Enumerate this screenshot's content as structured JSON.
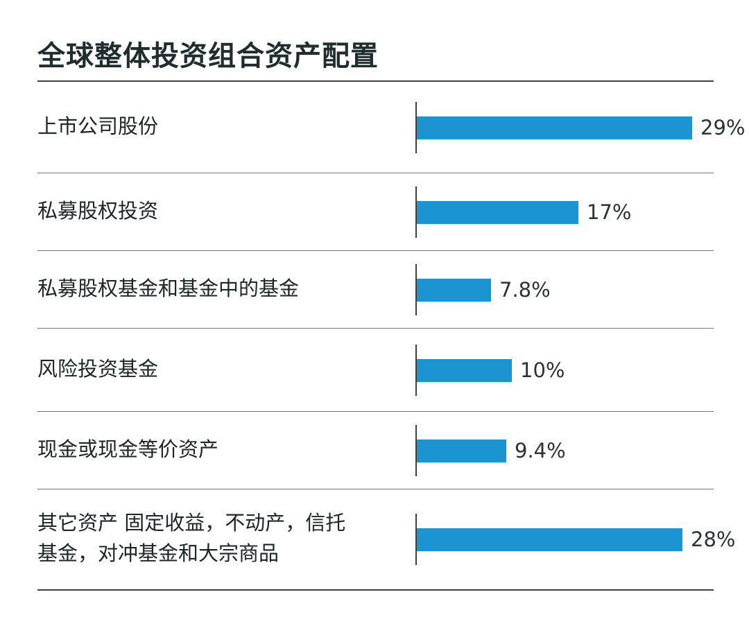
{
  "chart_data": {
    "type": "bar",
    "orientation": "horizontal",
    "title": "全球整体投资组合资产配置",
    "categories": [
      [
        "上市公司股份"
      ],
      [
        "私募股权投资"
      ],
      [
        "私募股权基金和基金中的基金"
      ],
      [
        "风险投资基金"
      ],
      [
        "现金或现金等价资产"
      ],
      [
        "其它资产 固定收益，不动产，信托",
        "基金，对冲基金和大宗商品"
      ]
    ],
    "values": [
      29,
      17,
      7.8,
      10,
      9.4,
      28
    ],
    "value_labels": [
      "29%",
      "17%",
      "7.8%",
      "10%",
      "9.4%",
      "28%"
    ],
    "xlim": [
      0,
      29
    ],
    "bar_color": "#1d94d2",
    "grid": false,
    "legend": "none"
  }
}
